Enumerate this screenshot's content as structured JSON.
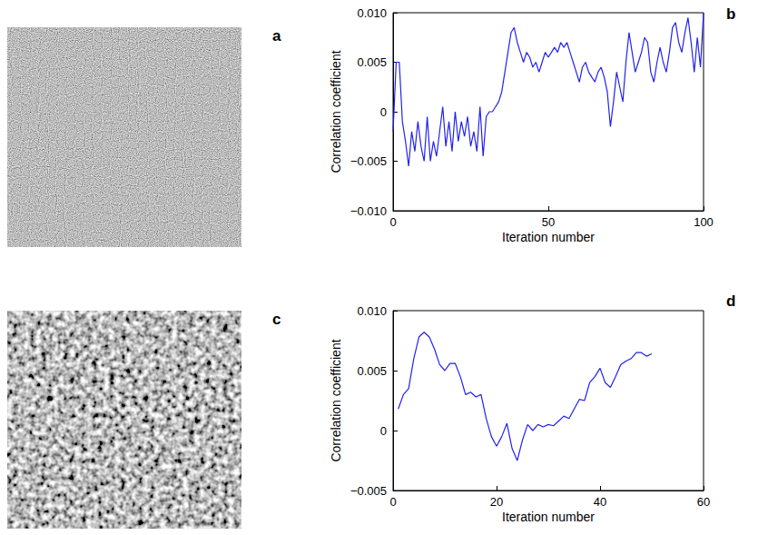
{
  "panel_labels": [
    "a",
    "b",
    "c",
    "d"
  ],
  "chart_data": [
    {
      "type": "line",
      "color": "#2222ee",
      "grid": false,
      "x_label": "Iteration number",
      "y_label": "Correlation coefficient",
      "x": [
        0,
        1,
        2,
        3,
        4,
        5,
        6,
        7,
        8,
        9,
        10,
        11,
        12,
        13,
        14,
        15,
        16,
        17,
        18,
        19,
        20,
        21,
        22,
        23,
        24,
        25,
        26,
        27,
        28,
        29,
        30,
        31,
        32,
        33,
        34,
        35,
        36,
        37,
        38,
        39,
        40,
        41,
        42,
        43,
        44,
        45,
        46,
        47,
        48,
        49,
        50,
        51,
        52,
        53,
        54,
        55,
        56,
        57,
        58,
        59,
        60,
        61,
        62,
        63,
        64,
        65,
        66,
        67,
        68,
        69,
        70,
        71,
        72,
        73,
        74,
        75,
        76,
        77,
        78,
        79,
        80,
        81,
        82,
        83,
        84,
        85,
        86,
        87,
        88,
        89,
        90,
        91,
        92,
        93,
        94,
        95,
        96,
        97,
        98,
        99,
        100
      ],
      "values": [
        -0.002,
        0.005,
        0.005,
        -0.001,
        -0.003,
        -0.0055,
        -0.002,
        -0.004,
        -0.001,
        -0.0035,
        -0.005,
        -0.0005,
        -0.005,
        -0.003,
        -0.0045,
        -0.002,
        0.0005,
        -0.0035,
        -0.001,
        -0.004,
        0.0,
        -0.003,
        -0.001,
        -0.0025,
        -0.0005,
        -0.0035,
        -0.002,
        -0.004,
        0.0005,
        -0.0045,
        -0.0005,
        0.0,
        0.0,
        0.0005,
        0.001,
        0.002,
        0.004,
        0.006,
        0.008,
        0.0085,
        0.007,
        0.006,
        0.005,
        0.006,
        0.0055,
        0.0045,
        0.005,
        0.004,
        0.005,
        0.006,
        0.0055,
        0.006,
        0.0065,
        0.006,
        0.007,
        0.0065,
        0.007,
        0.006,
        0.005,
        0.004,
        0.003,
        0.0045,
        0.005,
        0.004,
        0.0035,
        0.003,
        0.004,
        0.0045,
        0.0035,
        0.002,
        -0.0015,
        0.001,
        0.004,
        0.0025,
        0.001,
        0.005,
        0.008,
        0.006,
        0.004,
        0.005,
        0.006,
        0.0075,
        0.007,
        0.004,
        0.003,
        0.005,
        0.0065,
        0.005,
        0.004,
        0.006,
        0.0085,
        0.009,
        0.007,
        0.006,
        0.008,
        0.0095,
        0.007,
        0.004,
        0.0075,
        0.0045,
        0.01
      ],
      "xlim": [
        0,
        100
      ],
      "xticks": [
        0,
        50,
        100
      ],
      "ylim": [
        -0.01,
        0.01
      ],
      "yticks": [
        {
          "value": -0.01,
          "label": "−0.010"
        },
        {
          "value": -0.005,
          "label": "−0.005"
        },
        0,
        0.005,
        {
          "value": 0.01,
          "label": "0.010"
        }
      ]
    },
    {
      "type": "line",
      "color": "#2222ee",
      "grid": false,
      "x_label": "Iteration number",
      "y_label": "Correlation coefficient",
      "x": [
        1,
        2,
        3,
        4,
        5,
        6,
        7,
        8,
        9,
        10,
        11,
        12,
        13,
        14,
        15,
        16,
        17,
        18,
        19,
        20,
        21,
        22,
        23,
        24,
        25,
        26,
        27,
        28,
        29,
        30,
        31,
        32,
        33,
        34,
        35,
        36,
        37,
        38,
        39,
        40,
        41,
        42,
        43,
        44,
        45,
        46,
        47,
        48,
        49,
        50
      ],
      "values": [
        0.0018,
        0.003,
        0.0035,
        0.006,
        0.0078,
        0.0082,
        0.0078,
        0.0068,
        0.0055,
        0.005,
        0.0056,
        0.0056,
        0.0045,
        0.003,
        0.0032,
        0.0028,
        0.003,
        0.001,
        -0.0005,
        -0.0013,
        -0.0005,
        0.0006,
        -0.0015,
        -0.0025,
        -0.0008,
        0.0005,
        0.0,
        0.0005,
        0.0003,
        0.0005,
        0.0004,
        0.0008,
        0.0012,
        0.001,
        0.0018,
        0.0026,
        0.0025,
        0.004,
        0.0045,
        0.0052,
        0.004,
        0.0036,
        0.0045,
        0.0055,
        0.0058,
        0.006,
        0.0065,
        0.0065,
        0.0062,
        0.0064
      ],
      "xlim": [
        0,
        60
      ],
      "xticks": [
        0,
        20,
        40,
        60
      ],
      "ylim": [
        -0.005,
        0.01
      ],
      "yticks": [
        {
          "value": -0.005,
          "label": "−0.005"
        },
        0,
        0.005,
        {
          "value": 0.01,
          "label": "0.010"
        }
      ]
    }
  ]
}
